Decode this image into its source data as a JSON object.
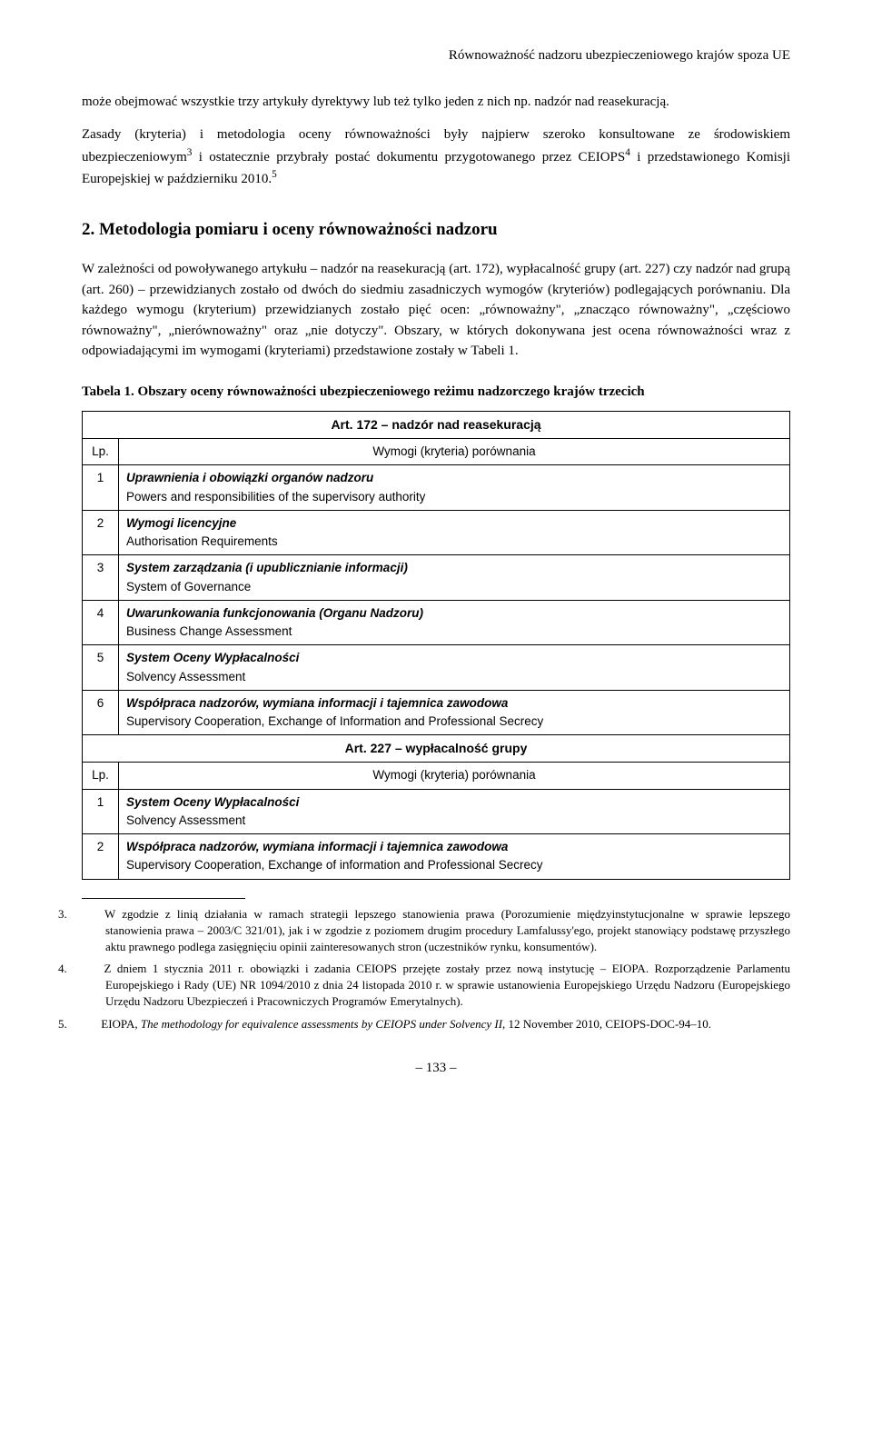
{
  "header": {
    "title": "Równoważność nadzoru ubezpieczeniowego krajów spoza UE"
  },
  "para1_html": "może obejmować wszystkie trzy artykuły dyrektywy lub też tylko jeden z nich np. nadzór nad reasekuracją.",
  "para2_html": "Zasady (kryteria) i metodologia oceny równoważności były najpierw szeroko konsultowane ze środowiskiem ubezpieczeniowym<sup>3</sup> i ostatecznie przybrały postać dokumentu przygotowanego przez CEIOPS<sup>4</sup> i przedstawionego Komisji Europejskiej w październiku 2010.<sup>5</sup>",
  "section_heading": "2. Metodologia pomiaru i oceny równoważności nadzoru",
  "para3_html": "W zależności od powoływanego artykułu – nadzór na reasekuracją (art. 172), wypłacalność grupy (art. 227) czy nadzór nad grupą (art. 260) – przewidzianych zostało od dwóch do siedmiu zasadniczych wymogów (kryteriów) podlegających porównaniu. Dla każdego wymogu (kryterium) przewidzianych zostało pięć ocen: „równoważny\", „znacząco równoważny\", „częściowo równoważny\", „nierównoważny\" oraz „nie dotyczy\". Obszary, w których dokonywana jest ocena równoważności wraz z odpowiadającymi im wymogami (kryteriami) przedstawione zostały w Tabeli 1.",
  "table": {
    "caption": "Tabela 1. Obszary oceny równoważności ubezpieczeniowego reżimu nadzorczego krajów trzecich",
    "group1_header": "Art. 172 – nadzór nad reasekuracją",
    "lp_label": "Lp.",
    "criteria_label": "Wymogi (kryteria) porównania",
    "group1_rows": [
      {
        "n": "1",
        "bold": "Uprawnienia i obowiązki organów nadzoru",
        "sub": "Powers and responsibilities of the supervisory authority"
      },
      {
        "n": "2",
        "bold": "Wymogi licencyjne",
        "sub": "Authorisation Requirements"
      },
      {
        "n": "3",
        "bold": "System zarządzania (i upublicznianie informacji)",
        "sub": "System of Governance"
      },
      {
        "n": "4",
        "bold": "Uwarunkowania funkcjonowania (Organu Nadzoru)",
        "sub": "Business Change Assessment"
      },
      {
        "n": "5",
        "bold": "System Oceny Wypłacalności",
        "sub": "Solvency Assessment"
      },
      {
        "n": "6",
        "bold": "Współpraca nadzorów, wymiana informacji i tajemnica zawodowa",
        "sub": "Supervisory Cooperation, Exchange of Information and Professional Secrecy"
      }
    ],
    "group2_header": "Art. 227 – wypłacalność grupy",
    "group2_rows": [
      {
        "n": "1",
        "bold": "System Oceny Wypłacalności",
        "sub": "Solvency Assessment"
      },
      {
        "n": "2",
        "bold": "Współpraca nadzorów, wymiana informacji i tajemnica zawodowa",
        "sub": "Supervisory Cooperation, Exchange of information and Professional Secrecy"
      }
    ]
  },
  "footnotes": [
    {
      "n": "3.",
      "html": "W zgodzie z linią działania w ramach strategii lepszego stanowienia prawa (Porozumienie międzyinstytucjonalne w sprawie lepszego stanowienia prawa – 2003/C 321/01), jak i w zgodzie z poziomem drugim procedury Lamfalussy'ego, projekt stanowiący podstawę przyszłego aktu prawnego podlega zasięgnięciu opinii zainteresowanych stron (uczestników rynku, konsumentów)."
    },
    {
      "n": "4.",
      "html": "Z dniem 1 stycznia 2011 r. obowiązki i zadania CEIOPS przejęte zostały przez nową instytucję – EIOPA. Rozporządzenie Parlamentu Europejskiego i Rady (UE) NR 1094/2010 z dnia 24 listopada 2010 r. w sprawie ustanowienia Europejskiego Urzędu Nadzoru (Europejskiego Urzędu Nadzoru Ubezpieczeń i Pracowniczych Programów Emerytalnych)."
    },
    {
      "n": "5.",
      "html": "EIOPA, <span class=\"fn-italic\">The methodology for equivalence assessments by CEIOPS under Solvency II</span>, 12 November 2010, CEIOPS-DOC-94–10."
    }
  ],
  "page_number": "– 133 –"
}
